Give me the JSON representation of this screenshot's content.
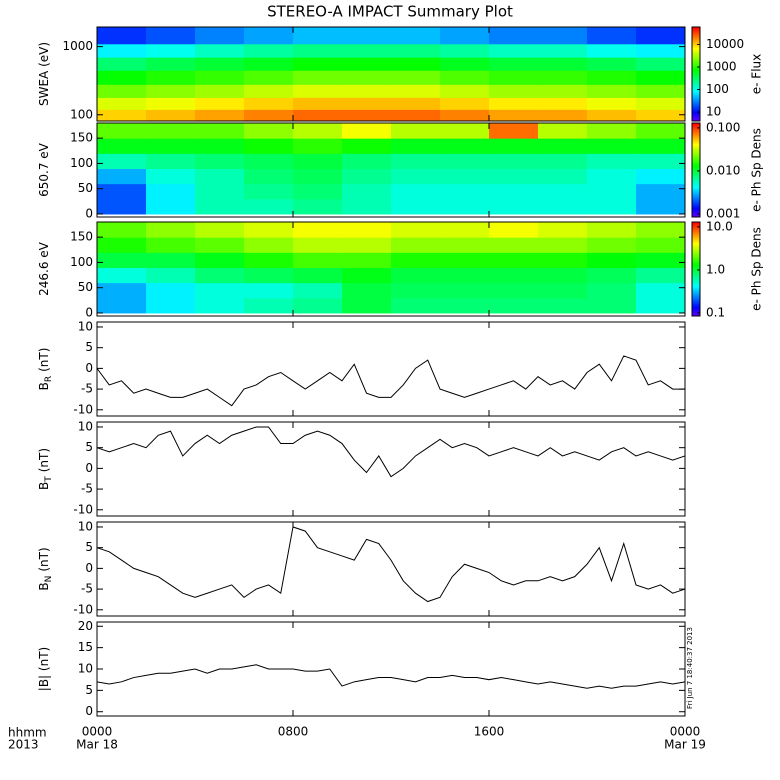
{
  "page": {
    "title": "STEREO-A IMPACT Summary Plot",
    "xlim": [
      0,
      24
    ],
    "xticks": [
      {
        "value": 0,
        "label": "0000"
      },
      {
        "value": 8,
        "label": "0800"
      },
      {
        "value": 16,
        "label": "1600"
      },
      {
        "value": 24,
        "label": "0000"
      }
    ],
    "date_labels": [
      {
        "value": 0,
        "label": "Mar 18"
      },
      {
        "value": 24,
        "label": "Mar 19"
      }
    ],
    "corner_labels": [
      "hhmm",
      "2013"
    ],
    "stamp": "Fri Jun  7 18:40:37 2013"
  },
  "chart_data": [
    {
      "type": "heatmap",
      "ylabel": "SWEA (eV)",
      "log": true,
      "ylim": [
        81,
        1940
      ],
      "yticks": [
        100,
        1000
      ],
      "colormap": "rainbow",
      "clabel": "e- Flux",
      "clim": [
        4,
        60000
      ],
      "clog": true,
      "cticks": [
        10,
        100,
        1000,
        10000
      ],
      "xbins": [
        0,
        2,
        4,
        6,
        8,
        10,
        12,
        14,
        16,
        18,
        20,
        22,
        24
      ],
      "ybins": [
        81,
        120,
        180,
        280,
        450,
        700,
        1100,
        1940
      ],
      "z": [
        [
          10000,
          12000,
          15000,
          20000,
          25000,
          25000,
          25000,
          20000,
          15000,
          15000,
          12000,
          10000
        ],
        [
          5000,
          6000,
          8000,
          10000,
          12000,
          12000,
          12000,
          10000,
          8000,
          8000,
          6000,
          5000
        ],
        [
          2000,
          2500,
          3000,
          4000,
          5000,
          5000,
          5000,
          4000,
          3000,
          3000,
          2500,
          2000
        ],
        [
          800,
          1000,
          1200,
          1500,
          2000,
          2000,
          2000,
          1500,
          1200,
          1200,
          1000,
          800
        ],
        [
          300,
          400,
          500,
          600,
          800,
          800,
          800,
          600,
          500,
          500,
          400,
          300
        ],
        [
          80,
          100,
          150,
          200,
          250,
          250,
          250,
          200,
          150,
          150,
          100,
          80
        ],
        [
          15,
          20,
          30,
          40,
          50,
          50,
          50,
          40,
          30,
          30,
          20,
          15
        ]
      ]
    },
    {
      "type": "heatmap",
      "ylabel": "650.7 eV",
      "log": false,
      "ylim": [
        -6,
        180
      ],
      "yticks": [
        0,
        50,
        100,
        150
      ],
      "colormap": "rainbow",
      "clabel": "e- Ph Sp Dens",
      "clim": [
        0.00085,
        0.13
      ],
      "clog": true,
      "cticks": [
        {
          "value": 0.001,
          "label": "0.001"
        },
        {
          "value": 0.01,
          "label": "0.010"
        },
        {
          "value": 0.1,
          "label": "0.100"
        }
      ],
      "xbins": [
        0,
        2,
        4,
        6,
        8,
        10,
        12,
        14,
        16,
        18,
        20,
        22,
        24
      ],
      "ybins": [
        0,
        30,
        60,
        90,
        120,
        150,
        180
      ],
      "z": [
        [
          0.002,
          0.004,
          0.006,
          0.006,
          0.007,
          0.006,
          0.005,
          0.005,
          0.005,
          0.005,
          0.005,
          0.003
        ],
        [
          0.002,
          0.004,
          0.006,
          0.007,
          0.008,
          0.006,
          0.005,
          0.005,
          0.005,
          0.005,
          0.005,
          0.003
        ],
        [
          0.003,
          0.005,
          0.006,
          0.008,
          0.009,
          0.007,
          0.006,
          0.006,
          0.006,
          0.006,
          0.005,
          0.004
        ],
        [
          0.006,
          0.007,
          0.008,
          0.009,
          0.01,
          0.008,
          0.007,
          0.007,
          0.007,
          0.007,
          0.006,
          0.006
        ],
        [
          0.012,
          0.012,
          0.012,
          0.014,
          0.016,
          0.014,
          0.012,
          0.012,
          0.012,
          0.012,
          0.012,
          0.012
        ],
        [
          0.02,
          0.02,
          0.02,
          0.025,
          0.03,
          0.04,
          0.03,
          0.03,
          0.08,
          0.03,
          0.025,
          0.02
        ]
      ]
    },
    {
      "type": "heatmap",
      "ylabel": "246.6 eV",
      "log": false,
      "ylim": [
        -6,
        180
      ],
      "yticks": [
        0,
        50,
        100,
        150
      ],
      "colormap": "rainbow",
      "clabel": "e- Ph Sp Dens",
      "clim": [
        0.085,
        13
      ],
      "clog": true,
      "cticks": [
        0.1,
        {
          "value": 1,
          "label": "1.0"
        },
        {
          "value": 10,
          "label": "10.0"
        }
      ],
      "xbins": [
        0,
        2,
        4,
        6,
        8,
        10,
        12,
        14,
        16,
        18,
        20,
        22,
        24
      ],
      "ybins": [
        0,
        30,
        60,
        90,
        120,
        150,
        180
      ],
      "z": [
        [
          0.3,
          0.4,
          0.5,
          0.6,
          0.7,
          1,
          0.8,
          0.8,
          0.8,
          0.8,
          0.8,
          0.5
        ],
        [
          0.3,
          0.4,
          0.5,
          0.5,
          0.6,
          1,
          0.9,
          0.9,
          0.9,
          0.9,
          0.8,
          0.5
        ],
        [
          0.5,
          0.6,
          0.8,
          0.9,
          1,
          1.2,
          1,
          1,
          1,
          1,
          0.9,
          0.7
        ],
        [
          1,
          1,
          1.2,
          1.5,
          1.8,
          1.8,
          1.5,
          1.5,
          1.5,
          1.5,
          1.3,
          1.2
        ],
        [
          1.5,
          1.8,
          2,
          2.5,
          3,
          3,
          2.5,
          2.5,
          2.5,
          2.5,
          2.2,
          2
        ],
        [
          2,
          2.5,
          3,
          3.5,
          4,
          4,
          3.5,
          3.5,
          4,
          3.5,
          3,
          2.5
        ]
      ]
    },
    {
      "type": "line",
      "ylabel": "B",
      "ylabel_sub": "R",
      "ylabel_unit": "(nT)",
      "ylim": [
        -11.5,
        11.2
      ],
      "yticks": [
        -10,
        -5,
        0,
        5,
        10
      ],
      "color": "#000000",
      "x": [
        0,
        0.5,
        1,
        1.5,
        2,
        2.5,
        3,
        3.5,
        4,
        4.5,
        5,
        5.5,
        6,
        6.5,
        7,
        7.5,
        8,
        8.5,
        9,
        9.5,
        10,
        10.5,
        11,
        11.5,
        12,
        12.5,
        13,
        13.5,
        14,
        14.5,
        15,
        15.5,
        16,
        16.5,
        17,
        17.5,
        18,
        18.5,
        19,
        19.5,
        20,
        20.5,
        21,
        21.5,
        22,
        22.5,
        23,
        23.5,
        24
      ],
      "values": [
        0,
        -4,
        -3,
        -6,
        -5,
        -6,
        -7,
        -7,
        -6,
        -5,
        -7,
        -9,
        -5,
        -4,
        -2,
        -1,
        -3,
        -5,
        -3,
        -1,
        -3,
        1,
        -6,
        -7,
        -7,
        -4,
        0,
        2,
        -5,
        -6,
        -7,
        -6,
        -5,
        -4,
        -3,
        -5,
        -2,
        -4,
        -3,
        -5,
        -1,
        1,
        -3,
        3,
        2,
        -4,
        -3,
        -5,
        -5
      ]
    },
    {
      "type": "line",
      "ylabel": "B",
      "ylabel_sub": "T",
      "ylabel_unit": "(nT)",
      "ylim": [
        -11.5,
        11.2
      ],
      "yticks": [
        -10,
        -5,
        0,
        5,
        10
      ],
      "color": "#000000",
      "x": [
        0,
        0.5,
        1,
        1.5,
        2,
        2.5,
        3,
        3.5,
        4,
        4.5,
        5,
        5.5,
        6,
        6.5,
        7,
        7.5,
        8,
        8.5,
        9,
        9.5,
        10,
        10.5,
        11,
        11.5,
        12,
        12.5,
        13,
        13.5,
        14,
        14.5,
        15,
        15.5,
        16,
        16.5,
        17,
        17.5,
        18,
        18.5,
        19,
        19.5,
        20,
        20.5,
        21,
        21.5,
        22,
        22.5,
        23,
        23.5,
        24
      ],
      "values": [
        5,
        4,
        5,
        6,
        5,
        8,
        9,
        3,
        6,
        8,
        6,
        8,
        9,
        10,
        10,
        6,
        6,
        8,
        9,
        8,
        6,
        2,
        -1,
        3,
        -2,
        0,
        3,
        5,
        7,
        5,
        6,
        5,
        3,
        4,
        5,
        4,
        3,
        5,
        3,
        4,
        3,
        2,
        4,
        5,
        3,
        4,
        3,
        2,
        3
      ]
    },
    {
      "type": "line",
      "ylabel": "B",
      "ylabel_sub": "N",
      "ylabel_unit": "(nT)",
      "ylim": [
        -11.5,
        11.2
      ],
      "yticks": [
        -10,
        -5,
        0,
        5,
        10
      ],
      "color": "#000000",
      "x": [
        0,
        0.5,
        1,
        1.5,
        2,
        2.5,
        3,
        3.5,
        4,
        4.5,
        5,
        5.5,
        6,
        6.5,
        7,
        7.5,
        8,
        8.5,
        9,
        9.5,
        10,
        10.5,
        11,
        11.5,
        12,
        12.5,
        13,
        13.5,
        14,
        14.5,
        15,
        15.5,
        16,
        16.5,
        17,
        17.5,
        18,
        18.5,
        19,
        19.5,
        20,
        20.5,
        21,
        21.5,
        22,
        22.5,
        23,
        23.5,
        24
      ],
      "values": [
        5,
        4,
        2,
        0,
        -1,
        -2,
        -4,
        -6,
        -7,
        -6,
        -5,
        -4,
        -7,
        -5,
        -4,
        -6,
        10,
        9,
        5,
        4,
        3,
        2,
        7,
        6,
        2,
        -3,
        -6,
        -8,
        -7,
        -2,
        1,
        0,
        -1,
        -3,
        -4,
        -3,
        -3,
        -2,
        -3,
        -2,
        1,
        5,
        -3,
        6,
        -4,
        -5,
        -4,
        -6,
        -5
      ]
    },
    {
      "type": "line",
      "ylabel": "|B| (nT)",
      "ylim": [
        -1,
        21
      ],
      "yticks": [
        0,
        5,
        10,
        15,
        20
      ],
      "color": "#000000",
      "x": [
        0,
        0.5,
        1,
        1.5,
        2,
        2.5,
        3,
        3.5,
        4,
        4.5,
        5,
        5.5,
        6,
        6.5,
        7,
        7.5,
        8,
        8.5,
        9,
        9.5,
        10,
        10.5,
        11,
        11.5,
        12,
        12.5,
        13,
        13.5,
        14,
        14.5,
        15,
        15.5,
        16,
        16.5,
        17,
        17.5,
        18,
        18.5,
        19,
        19.5,
        20,
        20.5,
        21,
        21.5,
        22,
        22.5,
        23,
        23.5,
        24
      ],
      "values": [
        7,
        6.5,
        7,
        8,
        8.5,
        9,
        9,
        9.5,
        10,
        9,
        10,
        10,
        10.5,
        11,
        10,
        10,
        10,
        9.5,
        9.5,
        10,
        6,
        7,
        7.5,
        8,
        8,
        7.5,
        7,
        8,
        8,
        8.5,
        8,
        8,
        7.5,
        8,
        7.5,
        7,
        6.5,
        7,
        6.5,
        6,
        5.5,
        6,
        5.5,
        6,
        6,
        6.5,
        7,
        6.5,
        7
      ]
    }
  ]
}
